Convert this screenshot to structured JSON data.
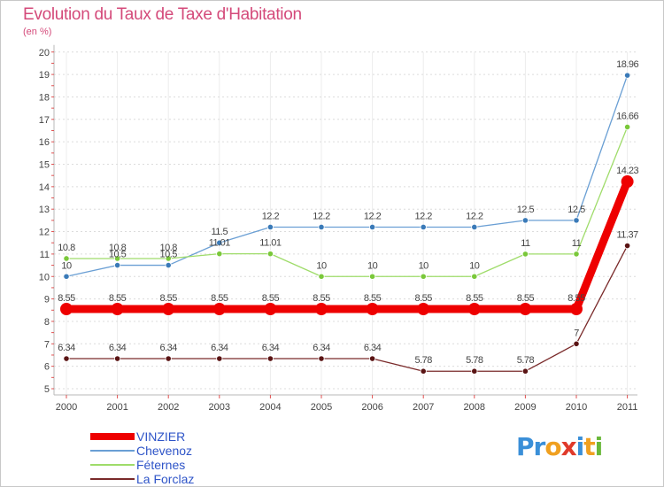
{
  "chart_data": {
    "type": "line",
    "title": "Evolution du Taux de Taxe d'Habitation",
    "subtitle": "(en %)",
    "categories": [
      "2000",
      "2001",
      "2002",
      "2003",
      "2004",
      "2005",
      "2006",
      "2007",
      "2008",
      "2009",
      "2010",
      "2011"
    ],
    "ylim": [
      5,
      20
    ],
    "yticks": [
      "5",
      "6",
      "7",
      "8",
      "9",
      "10",
      "11",
      "12",
      "13",
      "14",
      "15",
      "16",
      "17",
      "18",
      "19",
      "20"
    ],
    "series": [
      {
        "name": "Chevenoz",
        "color": "#6a9fd4",
        "dot": "#3a7ab8",
        "values": [
          10,
          10.5,
          10.5,
          11.5,
          12.2,
          12.2,
          12.2,
          12.2,
          12.2,
          12.5,
          12.5,
          18.96
        ],
        "labels": [
          "10",
          "10.5",
          "10.5",
          "11.5",
          "12.2",
          "12.2",
          "12.2",
          "12.2",
          "12.2",
          "12.5",
          "12.5",
          "18.96"
        ]
      },
      {
        "name": "Féternes",
        "color": "#9fdc6a",
        "dot": "#7ac83a",
        "values": [
          10.8,
          10.8,
          10.8,
          11.01,
          11.01,
          10,
          10,
          10,
          10,
          11,
          11,
          16.66
        ],
        "labels": [
          "10.8",
          "10.8",
          "10.8",
          "11.01",
          "11.01",
          "10",
          "10",
          "10",
          "10",
          "11",
          "11",
          "16.66"
        ]
      },
      {
        "name": "La Forclaz",
        "color": "#7a2a2a",
        "dot": "#5a1414",
        "values": [
          6.34,
          6.34,
          6.34,
          6.34,
          6.34,
          6.34,
          6.34,
          5.78,
          5.78,
          5.78,
          7,
          11.37
        ],
        "labels": [
          "6.34",
          "6.34",
          "6.34",
          "6.34",
          "6.34",
          "6.34",
          "6.34",
          "5.78",
          "5.78",
          "5.78",
          "7",
          "11.37"
        ]
      },
      {
        "name": "VINZIER",
        "color": "#ee0000",
        "dot": "#ee0000",
        "bold": true,
        "values": [
          8.55,
          8.55,
          8.55,
          8.55,
          8.55,
          8.55,
          8.55,
          8.55,
          8.55,
          8.55,
          8.55,
          14.23
        ],
        "labels": [
          "8.55",
          "8.55",
          "8.55",
          "8.55",
          "8.55",
          "8.55",
          "8.55",
          "8.55",
          "8.55",
          "8.55",
          "8.55",
          "14.23"
        ]
      }
    ]
  },
  "legend": {
    "items": [
      {
        "name": "VINZIER",
        "color": "#ee0000"
      },
      {
        "name": "Chevenoz",
        "color": "#6a9fd4"
      },
      {
        "name": "Féternes",
        "color": "#9fdc6a"
      },
      {
        "name": "La Forclaz",
        "color": "#7a2a2a"
      }
    ]
  },
  "logo": {
    "text": "Proxiti",
    "letters": [
      {
        "ch": "P",
        "color": "#3a8fd8"
      },
      {
        "ch": "r",
        "color": "#3a8fd8"
      },
      {
        "ch": "o",
        "color": "#f0a020"
      },
      {
        "ch": "x",
        "color": "#e03a2a"
      },
      {
        "ch": "i",
        "color": "#3a8fd8"
      },
      {
        "ch": "t",
        "color": "#f0a020"
      },
      {
        "ch": "i",
        "color": "#6ab83a"
      }
    ]
  }
}
